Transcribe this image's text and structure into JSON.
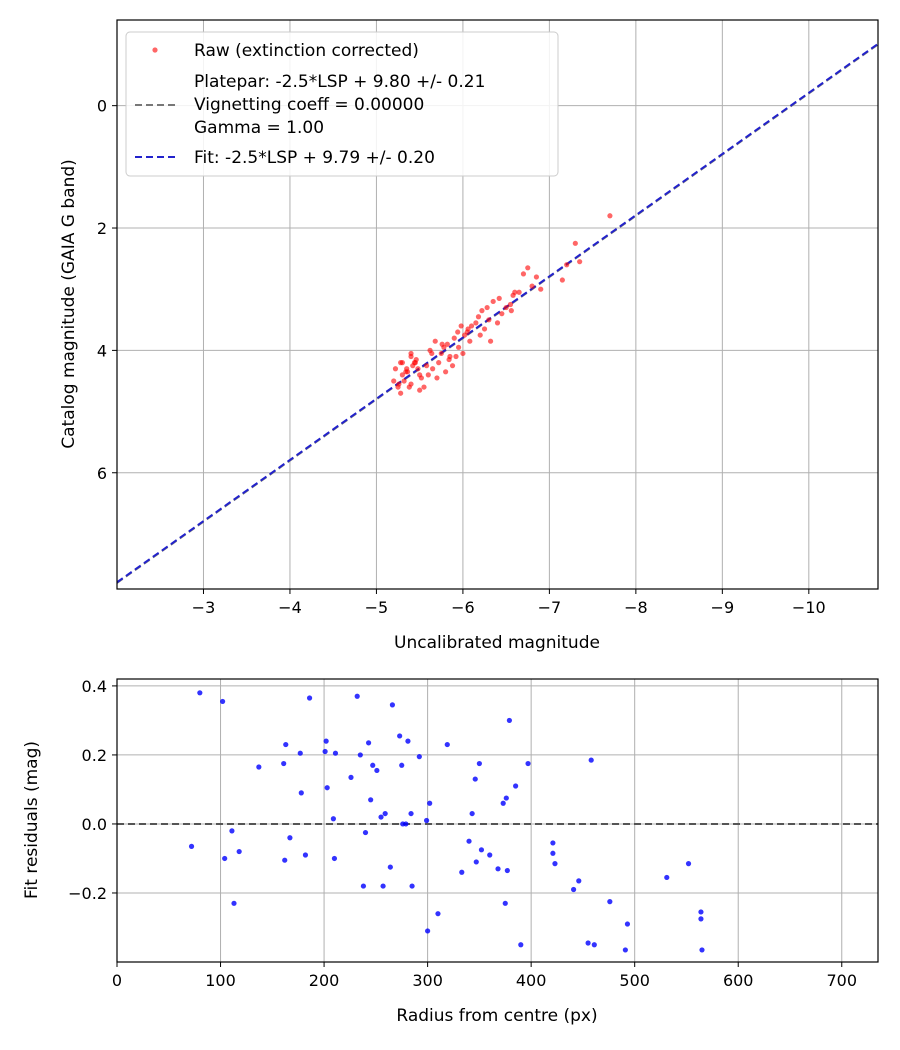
{
  "chart_data": [
    {
      "type": "scatter",
      "xlabel": "Uncalibrated magnitude",
      "ylabel": "Catalog magnitude (GAIA G band)",
      "xlim": [
        -2.0,
        -10.8
      ],
      "ylim": [
        7.9,
        -1.4
      ],
      "xticks": [
        -3,
        -4,
        -5,
        -6,
        -7,
        -8,
        -9,
        -10
      ],
      "xtick_labels": [
        "−3",
        "−4",
        "−5",
        "−6",
        "−7",
        "−8",
        "−9",
        "−10"
      ],
      "yticks": [
        0,
        2,
        4,
        6
      ],
      "ytick_labels": [
        "0",
        "2",
        "4",
        "6"
      ],
      "grid": true,
      "legend": {
        "location": "top-left",
        "entries": [
          {
            "label": "Raw (extinction corrected)",
            "style": "marker",
            "color": "#ff0000"
          },
          {
            "label": "Platepar: -2.5*LSP + 9.80 +/- 0.21",
            "label_line2": "Vignetting coeff = 0.00000",
            "label_line3": "Gamma = 1.00",
            "style": "dashed",
            "color": "#777777"
          },
          {
            "label": "Fit: -2.5*LSP + 9.79 +/- 0.20",
            "style": "dashed",
            "color": "#2222cc"
          }
        ]
      },
      "series": [
        {
          "name": "Raw (extinction corrected)",
          "kind": "points",
          "color": "#ff0000",
          "opacity": 0.6,
          "x": [
            -5.2,
            -5.25,
            -5.3,
            -5.28,
            -5.35,
            -5.38,
            -5.4,
            -5.42,
            -5.45,
            -5.48,
            -5.5,
            -5.3,
            -5.32,
            -5.36,
            -5.4,
            -5.44,
            -5.5,
            -5.55,
            -5.58,
            -5.6,
            -5.62,
            -5.65,
            -5.68,
            -5.7,
            -5.72,
            -5.75,
            -5.78,
            -5.8,
            -5.82,
            -5.85,
            -5.88,
            -5.9,
            -5.92,
            -5.95,
            -5.98,
            -6.0,
            -6.02,
            -6.05,
            -6.08,
            -6.1,
            -6.15,
            -6.2,
            -6.22,
            -6.25,
            -6.3,
            -6.32,
            -6.35,
            -6.4,
            -6.45,
            -6.5,
            -6.55,
            -6.58,
            -6.6,
            -6.65,
            -6.7,
            -6.75,
            -6.8,
            -6.85,
            -6.9,
            -7.15,
            -7.2,
            -7.3,
            -7.35,
            -7.7,
            -5.26,
            -5.34,
            -5.46,
            -5.52,
            -5.64,
            -5.76,
            -5.84,
            -5.94,
            -6.06,
            -6.18,
            -6.28,
            -6.42,
            -6.56,
            -5.22,
            -5.28,
            -5.4
          ],
          "y": [
            4.5,
            4.6,
            4.4,
            4.7,
            4.3,
            4.6,
            4.1,
            4.25,
            4.2,
            4.3,
            4.65,
            4.2,
            4.5,
            4.35,
            4.55,
            4.2,
            4.4,
            4.6,
            4.25,
            4.4,
            4.0,
            4.3,
            3.85,
            4.45,
            4.2,
            4.05,
            3.95,
            4.35,
            3.9,
            4.1,
            4.25,
            3.8,
            4.1,
            3.95,
            3.6,
            4.05,
            3.75,
            3.7,
            3.85,
            3.6,
            3.55,
            3.75,
            3.35,
            3.65,
            3.5,
            3.85,
            3.2,
            3.55,
            3.4,
            3.3,
            3.25,
            3.1,
            3.05,
            3.05,
            2.75,
            2.65,
            2.95,
            2.8,
            3.0,
            2.85,
            2.6,
            2.25,
            2.55,
            1.8,
            4.55,
            4.35,
            4.15,
            4.45,
            4.05,
            3.9,
            4.15,
            3.7,
            3.65,
            3.45,
            3.3,
            3.15,
            3.35,
            4.3,
            4.2,
            4.05
          ]
        },
        {
          "name": "Platepar",
          "kind": "line",
          "slope": 1.0,
          "intercept": 9.8,
          "color": "#777777",
          "dashed": true
        },
        {
          "name": "Fit",
          "kind": "line",
          "slope": 1.0,
          "intercept": 9.79,
          "color": "#2222cc",
          "dashed": true
        }
      ]
    },
    {
      "type": "scatter",
      "xlabel": "Radius from centre (px)",
      "ylabel": "Fit residuals (mag)",
      "xlim": [
        0,
        735
      ],
      "ylim": [
        -0.4,
        0.42
      ],
      "xticks": [
        0,
        100,
        200,
        300,
        400,
        500,
        600,
        700
      ],
      "xtick_labels": [
        "0",
        "100",
        "200",
        "300",
        "400",
        "500",
        "600",
        "700"
      ],
      "yticks": [
        -0.2,
        0.0,
        0.2,
        0.4
      ],
      "ytick_labels": [
        "−0.2",
        "0.0",
        "0.2",
        "0.4"
      ],
      "grid": true,
      "zero_line": {
        "y": 0.0,
        "color": "#555555",
        "dashed": true
      },
      "series": [
        {
          "name": "Residuals",
          "kind": "points",
          "color": "#0000ff",
          "opacity": 0.8,
          "x": [
            72,
            80,
            102,
            104,
            111,
            113,
            118,
            137,
            161,
            162,
            163,
            167,
            177,
            178,
            182,
            186,
            201,
            202,
            203,
            209,
            210,
            211,
            226,
            232,
            235,
            238,
            240,
            243,
            245,
            247,
            251,
            255,
            257,
            259,
            264,
            266,
            273,
            275,
            276,
            279,
            281,
            284,
            285,
            292,
            299,
            300,
            302,
            310,
            319,
            333,
            340,
            343,
            346,
            347,
            350,
            352,
            360,
            368,
            373,
            375,
            376,
            377,
            379,
            385,
            390,
            397,
            421,
            421,
            423,
            441,
            446,
            455,
            458,
            461,
            476,
            491,
            493,
            531,
            552,
            564,
            564,
            565
          ],
          "y": [
            -0.065,
            0.38,
            0.355,
            -0.1,
            -0.02,
            -0.23,
            -0.08,
            0.165,
            0.175,
            -0.105,
            0.23,
            -0.04,
            0.205,
            0.09,
            -0.09,
            0.365,
            0.21,
            0.24,
            0.105,
            0.015,
            -0.1,
            0.205,
            0.135,
            0.37,
            0.2,
            -0.18,
            -0.025,
            0.235,
            0.07,
            0.17,
            0.155,
            0.02,
            -0.18,
            0.03,
            -0.125,
            0.345,
            0.255,
            0.17,
            0.0,
            0.0,
            0.24,
            0.03,
            -0.18,
            0.195,
            0.01,
            -0.31,
            0.06,
            -0.26,
            0.23,
            -0.14,
            -0.05,
            0.03,
            0.13,
            -0.11,
            0.175,
            -0.075,
            -0.09,
            -0.13,
            0.06,
            -0.23,
            0.075,
            -0.135,
            0.3,
            0.11,
            -0.35,
            0.175,
            -0.085,
            -0.055,
            -0.115,
            -0.19,
            -0.165,
            -0.345,
            0.185,
            -0.35,
            -0.225,
            -0.365,
            -0.29,
            -0.155,
            -0.115,
            -0.255,
            -0.275,
            -0.365
          ]
        }
      ]
    }
  ]
}
